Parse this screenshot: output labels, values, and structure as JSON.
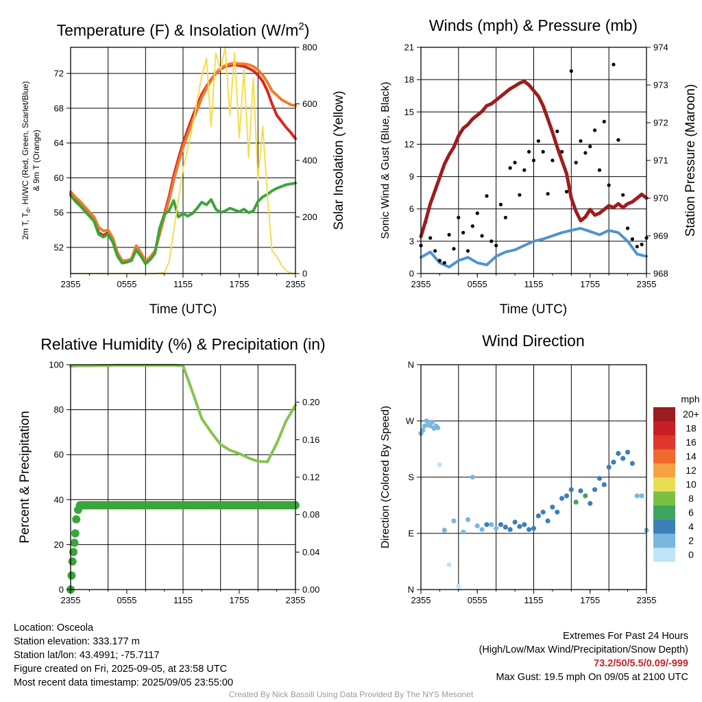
{
  "panels": {
    "temperature": {
      "title_main": "Temperature (F) & Insolation (W/m",
      "title_sup": "2",
      "title_end": ")",
      "ylabel_line1": "2m T, T",
      "ylabel_sub": "d",
      "ylabel_line1_rest": ", HI/WC (Red, Green, Scarlet/Blue)",
      "ylabel_line2": "& 9m T (Orange)",
      "ylabel_right": "Solar Insolation (Yellow)",
      "xlabel": "Time (UTC)"
    },
    "winds": {
      "title": "Winds (mph) & Pressure (mb)",
      "ylabel_left": "Sonic Wind & Gust (Blue, Black)",
      "ylabel_right": "Station Pressure (Maroon)",
      "xlabel": "Time (UTC)"
    },
    "humidity": {
      "title": "Relative Humidity (%) & Precipitation (in)",
      "ylabel_left": "Percent & Precipitation"
    },
    "direction": {
      "title": "Wind Direction",
      "ylabel_left": "Direction (Colored By Speed)",
      "colorbar_title": "mph",
      "colorbar_labels": [
        "20+",
        "18",
        "16",
        "14",
        "12",
        "10",
        "8",
        "6",
        "4",
        "2",
        "0"
      ],
      "colorbar_colors": [
        "#9b1b1e",
        "#c62026",
        "#e0362b",
        "#ef6a2d",
        "#f6a244",
        "#e8dc55",
        "#7cbf45",
        "#3fa55d",
        "#3d7fb8",
        "#7ab7e0",
        "#bfe4f8"
      ]
    }
  },
  "info": {
    "location": "Location: Osceola",
    "elevation": "Station elevation: 333.177 m",
    "latlon": "Station lat/lon: 43.4991; -75.7117",
    "created": "Figure created on Fri, 2025-09-05, at 23:58 UTC",
    "recent": "Most recent data timestamp: 2025/09/05 23:55:00",
    "extremes_title": "Extremes For Past 24 Hours",
    "extremes_legend": "(High/Low/Max Wind/Precipitation/Snow Depth)",
    "extremes_values": "73.2/50/5.5/0.09/-999",
    "max_gust": "Max Gust: 19.5 mph On 09/05 at 2100 UTC",
    "credit": "Created By Nick Bassill Using Data Provided By The NYS Mesonet"
  },
  "chart_data": [
    {
      "type": "line",
      "title": "Temperature (F) & Insolation (W/m2)",
      "xlabel": "Time (UTC)",
      "ylabel": "2m T, Td, HI/WC (Red, Green, Scarlet/Blue) & 9m T (Orange)",
      "ylabel_right": "Solar Insolation (Yellow)",
      "x_ticks": [
        "2355",
        "0555",
        "1155",
        "1755",
        "2355"
      ],
      "x_hours": [
        0,
        4,
        8,
        12,
        16,
        20,
        24
      ],
      "y_ticks": [
        52,
        56,
        60,
        64,
        68,
        72
      ],
      "ylim": [
        49,
        75
      ],
      "y2_ticks": [
        0,
        200,
        400,
        600,
        800
      ],
      "y2lim": [
        0,
        800
      ],
      "series": [
        {
          "name": "2m T",
          "color": "#d8261e",
          "axis": "left",
          "x": [
            0,
            0.5,
            1,
            1.5,
            2,
            2.5,
            3,
            3.5,
            4,
            4.5,
            5,
            5.5,
            6,
            6.5,
            7,
            7.5,
            8,
            8.5,
            9,
            9.5,
            10,
            10.5,
            11,
            11.5,
            12,
            12.5,
            13,
            13.5,
            14,
            14.5,
            15,
            15.5,
            16,
            16.5,
            17,
            17.5,
            18,
            18.5,
            19,
            19.5,
            20,
            20.5,
            21,
            21.5,
            22,
            22.5,
            23,
            23.5,
            24
          ],
          "values": [
            58.2,
            57.6,
            57.1,
            56.5,
            55.9,
            55.3,
            53.7,
            53.4,
            53.7,
            52.8,
            51.2,
            50.3,
            50.4,
            50.6,
            51.9,
            51.2,
            50.2,
            50.8,
            51.5,
            53.6,
            55.8,
            57.8,
            60.2,
            62.2,
            64.0,
            65.5,
            67.0,
            68.3,
            69.6,
            70.5,
            71.3,
            72.0,
            72.5,
            72.8,
            72.9,
            73.0,
            72.9,
            72.8,
            72.6,
            72.3,
            71.8,
            71.1,
            70.0,
            68.5,
            67.2,
            66.5,
            65.8,
            65.2,
            64.5
          ]
        },
        {
          "name": "9m T",
          "color": "#f07b2a",
          "axis": "left",
          "x": [
            0,
            0.5,
            1,
            1.5,
            2,
            2.5,
            3,
            3.5,
            4,
            4.5,
            5,
            5.5,
            6,
            6.5,
            7,
            7.5,
            8,
            8.5,
            9,
            9.5,
            10,
            10.5,
            11,
            11.5,
            12,
            12.5,
            13,
            13.5,
            14,
            14.5,
            15,
            15.5,
            16,
            16.5,
            17,
            17.5,
            18,
            18.5,
            19,
            19.5,
            20,
            20.5,
            21,
            21.5,
            22,
            22.5,
            23,
            23.5,
            24
          ],
          "values": [
            58.4,
            57.8,
            57.3,
            56.7,
            56.1,
            55.5,
            54.3,
            53.9,
            54.0,
            53.1,
            51.4,
            50.5,
            50.5,
            50.7,
            52.2,
            51.4,
            50.4,
            50.9,
            51.6,
            53.5,
            55.5,
            57.4,
            59.7,
            61.7,
            63.5,
            65.0,
            66.5,
            67.8,
            69.2,
            70.3,
            71.2,
            72.0,
            72.6,
            72.9,
            73.1,
            73.2,
            73.1,
            73.1,
            73.0,
            72.8,
            72.4,
            71.8,
            71.0,
            70.0,
            69.5,
            69.0,
            68.7,
            68.4,
            68.3
          ]
        },
        {
          "name": "2m Td",
          "color": "#3aa63a",
          "axis": "left",
          "x": [
            0,
            0.5,
            1,
            1.5,
            2,
            2.5,
            3,
            3.5,
            4,
            4.5,
            5,
            5.5,
            6,
            6.5,
            7,
            7.5,
            8,
            8.5,
            9,
            9.5,
            10,
            10.5,
            11,
            11.5,
            12,
            12.5,
            13,
            13.5,
            14,
            14.5,
            15,
            15.5,
            16,
            16.5,
            17,
            17.5,
            18,
            18.5,
            19,
            19.5,
            20,
            20.5,
            21,
            21.5,
            22,
            22.5,
            23,
            23.5,
            24
          ],
          "values": [
            58.0,
            57.3,
            56.8,
            56.2,
            55.6,
            55.0,
            53.5,
            53.2,
            53.5,
            52.6,
            51.0,
            50.2,
            50.3,
            50.5,
            51.7,
            51.0,
            50.1,
            50.6,
            51.3,
            54.2,
            55.8,
            56.2,
            57.4,
            55.5,
            55.9,
            55.6,
            55.9,
            56.5,
            57.2,
            56.9,
            57.5,
            56.4,
            56.0,
            56.2,
            56.5,
            56.3,
            56.1,
            56.4,
            56.0,
            56.2,
            57.3,
            57.8,
            58.1,
            58.5,
            58.8,
            59.0,
            59.2,
            59.3,
            59.4
          ]
        },
        {
          "name": "Solar Insolation",
          "color": "#f7dc4c",
          "axis": "right",
          "x": [
            0,
            1,
            2,
            3,
            4,
            5,
            6,
            7,
            8,
            9,
            10,
            10.5,
            11,
            11.5,
            12,
            12.5,
            13,
            13.5,
            14,
            14.5,
            15,
            15.5,
            16,
            16.5,
            17,
            17.5,
            18,
            18.5,
            19,
            19.5,
            20,
            20.5,
            21,
            21.5,
            22,
            22.5,
            23,
            23.5,
            24
          ],
          "values": [
            0,
            0,
            0,
            0,
            0,
            0,
            0,
            0,
            0,
            0,
            3,
            40,
            150,
            260,
            370,
            440,
            520,
            610,
            700,
            760,
            520,
            780,
            720,
            800,
            560,
            780,
            480,
            720,
            410,
            690,
            330,
            520,
            280,
            80,
            60,
            30,
            10,
            2,
            0
          ]
        }
      ]
    },
    {
      "type": "line",
      "title": "Winds (mph) & Pressure (mb)",
      "xlabel": "Time (UTC)",
      "ylabel": "Sonic Wind & Gust (Blue, Black)",
      "ylabel_right": "Station Pressure (Maroon)",
      "x_ticks": [
        "2355",
        "0555",
        "1155",
        "1755",
        "2355"
      ],
      "y_ticks": [
        0,
        3,
        6,
        9,
        12,
        15,
        18,
        21
      ],
      "ylim": [
        0,
        21
      ],
      "y2_ticks": [
        968,
        969,
        970,
        971,
        972,
        973,
        974
      ],
      "y2lim": [
        968,
        974
      ],
      "series": [
        {
          "name": "Sonic Wind",
          "color": "#4f93cf",
          "axis": "left",
          "x": [
            0,
            1,
            2,
            3,
            4,
            5,
            6,
            7,
            8,
            9,
            10,
            11,
            12,
            13,
            14,
            15,
            16,
            17,
            18,
            19,
            20,
            21,
            22,
            23,
            24
          ],
          "values": [
            1.5,
            2.0,
            1.0,
            0.6,
            1.2,
            1.5,
            1.0,
            0.8,
            1.6,
            2.0,
            2.2,
            2.6,
            3.0,
            3.2,
            3.5,
            3.8,
            4.0,
            4.2,
            3.9,
            3.6,
            4.0,
            3.8,
            3.0,
            1.8,
            1.6
          ]
        },
        {
          "name": "Gust",
          "color": "#000000",
          "axis": "left",
          "marker": "dot",
          "x": [
            0,
            0.5,
            1,
            1.5,
            2,
            2.5,
            3,
            3.5,
            4,
            4.5,
            5,
            5.5,
            6,
            6.5,
            7,
            7.5,
            8,
            8.5,
            9,
            9.5,
            10,
            10.5,
            11,
            11.5,
            12,
            12.5,
            13,
            13.5,
            14,
            14.5,
            15,
            15.5,
            16,
            16.5,
            17,
            17.5,
            18,
            18.5,
            19,
            19.5,
            20,
            20.5,
            21,
            21.5,
            22,
            22.5,
            23,
            23.5,
            24
          ],
          "values": [
            2.6,
            4.8,
            3.3,
            2.1,
            1.2,
            1.0,
            3.6,
            2.3,
            5.2,
            3.8,
            2.1,
            4.4,
            5.6,
            3.5,
            7.2,
            3.0,
            2.6,
            6.4,
            5.2,
            9.8,
            10.3,
            7.3,
            9.6,
            11.3,
            10.5,
            12.3,
            11.3,
            7.4,
            10.5,
            13.2,
            11.3,
            7.6,
            18.8,
            10.3,
            12.3,
            11.2,
            11.8,
            13.3,
            9.6,
            14.1,
            8.2,
            19.4,
            12.4,
            7.3,
            4.2,
            3.2,
            2.5,
            2.7,
            3.3
          ]
        },
        {
          "name": "Station Pressure",
          "color": "#a01c1c",
          "axis": "right",
          "x": [
            0,
            0.5,
            1,
            1.5,
            2,
            2.5,
            3,
            3.5,
            4,
            4.5,
            5,
            5.5,
            6,
            6.5,
            7,
            7.5,
            8,
            8.5,
            9,
            9.5,
            10,
            10.5,
            11,
            11.5,
            12,
            12.5,
            13,
            13.5,
            14,
            14.5,
            15,
            15.5,
            16,
            16.5,
            17,
            17.5,
            18,
            18.5,
            19,
            19.5,
            20,
            20.5,
            21,
            21.5,
            22,
            22.5,
            23,
            23.5,
            24
          ],
          "values": [
            968.98,
            969.4,
            969.85,
            970.2,
            970.55,
            970.9,
            971.15,
            971.35,
            971.65,
            971.85,
            971.95,
            972.1,
            972.2,
            972.3,
            972.45,
            972.5,
            972.6,
            972.7,
            972.8,
            972.9,
            972.97,
            973.05,
            973.1,
            973.0,
            972.85,
            972.7,
            972.45,
            972.1,
            971.75,
            971.35,
            971.0,
            970.65,
            970.0,
            969.65,
            969.4,
            969.5,
            969.7,
            969.55,
            969.6,
            969.7,
            969.8,
            969.75,
            969.85,
            969.75,
            969.85,
            969.9,
            970.0,
            970.1,
            970.0
          ]
        }
      ]
    },
    {
      "type": "line",
      "title": "Relative Humidity (%) & Precipitation (in)",
      "ylabel": "Percent & Precipitation",
      "x_ticks": [
        "2355",
        "0555",
        "1155",
        "1755",
        "2355"
      ],
      "y_ticks": [
        0,
        20,
        40,
        60,
        80,
        100
      ],
      "ylim": [
        0,
        100
      ],
      "y2_ticks": [
        0.0,
        0.04,
        0.08,
        0.12,
        0.16,
        0.2
      ],
      "y2lim": [
        0,
        0.24
      ],
      "series": [
        {
          "name": "Relative Humidity",
          "color": "#86c34e",
          "axis": "left",
          "x": [
            0,
            1,
            2,
            3,
            4,
            5,
            6,
            7,
            8,
            9,
            10,
            11,
            12,
            13,
            14,
            15,
            16,
            17,
            18,
            19,
            20,
            21,
            22,
            23,
            24
          ],
          "values": [
            99.3,
            99.5,
            99.5,
            99.6,
            99.7,
            99.8,
            99.8,
            99.8,
            99.8,
            99.8,
            99.8,
            99.8,
            99.5,
            88.0,
            76.0,
            70.0,
            64.5,
            62.0,
            60.5,
            58.5,
            57.0,
            56.8,
            65.0,
            75.0,
            82.0
          ]
        },
        {
          "name": "Precipitation",
          "color": "#3aa63a",
          "axis": "right",
          "marker": "dot",
          "x": [
            0,
            0.1,
            0.2,
            0.3,
            0.4,
            0.5,
            0.6,
            0.8,
            1,
            2,
            4,
            8,
            12,
            16,
            20,
            24
          ],
          "values": [
            0.0,
            0.015,
            0.03,
            0.04,
            0.05,
            0.06,
            0.075,
            0.085,
            0.09,
            0.09,
            0.09,
            0.09,
            0.09,
            0.09,
            0.09,
            0.09
          ]
        }
      ]
    },
    {
      "type": "scatter",
      "title": "Wind Direction",
      "ylabel": "Direction (Colored By Speed)",
      "x_ticks": [
        "2355",
        "0555",
        "1155",
        "1755",
        "2355"
      ],
      "y_ticks": [
        "N",
        "E",
        "S",
        "W",
        "N"
      ],
      "ylim": [
        0,
        360
      ],
      "x": [
        0,
        0.2,
        0.4,
        0.6,
        0.8,
        1,
        1.2,
        1.4,
        1.6,
        1.8,
        2,
        2.5,
        3,
        3.5,
        4,
        4.5,
        5,
        5.5,
        6,
        6.5,
        7,
        7.5,
        8,
        8.5,
        9,
        9.5,
        10,
        10.5,
        11,
        11.5,
        12,
        12.5,
        13,
        13.5,
        14,
        14.5,
        15,
        15.5,
        16,
        16.5,
        17,
        17.5,
        18,
        18.5,
        19,
        19.5,
        20,
        20.5,
        21,
        21.5,
        22,
        22.5,
        23,
        23.5,
        24
      ],
      "values": [
        250,
        255,
        262,
        270,
        264,
        262,
        268,
        258,
        262,
        259,
        200,
        95,
        40,
        110,
        5,
        92,
        112,
        180,
        102,
        96,
        104,
        104,
        98,
        104,
        100,
        96,
        108,
        101,
        104,
        96,
        98,
        118,
        124,
        110,
        132,
        124,
        146,
        150,
        160,
        140,
        158,
        150,
        138,
        160,
        178,
        168,
        196,
        204,
        218,
        210,
        220,
        202,
        150,
        150,
        95
      ],
      "speed": [
        1,
        1,
        1,
        2,
        1,
        1,
        2,
        1,
        1,
        1,
        0,
        1,
        0,
        1,
        0,
        2,
        2,
        1,
        2,
        2,
        3,
        2,
        2,
        3,
        3,
        3,
        4,
        4,
        4,
        4,
        4,
        3,
        4,
        4,
        4,
        4,
        4,
        4,
        4,
        6,
        4,
        5,
        4,
        4,
        4,
        4,
        4,
        4,
        3,
        4,
        4,
        3,
        2,
        1,
        1
      ]
    }
  ]
}
